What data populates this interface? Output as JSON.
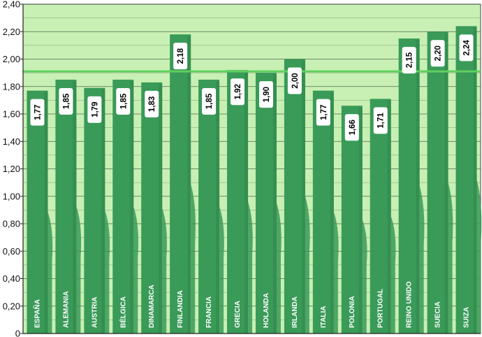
{
  "chart_data": {
    "type": "bar",
    "title": "",
    "xlabel": "",
    "ylabel": "",
    "categories": [
      "ESPAÑA",
      "ALEMANIA",
      "AUSTRIA",
      "BÉLGICA",
      "DINAMARCA",
      "FINLANDIA",
      "FRANCIA",
      "GRECIA",
      "HOLANDA",
      "IRLANDA",
      "ITALIA",
      "POLONIA",
      "PORTUGAL",
      "REINO UNIDO",
      "SUECIA",
      "SUIZA"
    ],
    "values": [
      1.77,
      1.85,
      1.79,
      1.85,
      1.83,
      2.18,
      1.85,
      1.92,
      1.9,
      2.0,
      1.77,
      1.66,
      1.71,
      2.15,
      2.2,
      2.24
    ],
    "value_labels": [
      "1,77",
      "1,85",
      "1,79",
      "1,85",
      "1,83",
      "2,18",
      "1,85",
      "1,92",
      "1,90",
      "2,00",
      "1,77",
      "1,66",
      "1,71",
      "2,15",
      "2,20",
      "2,24"
    ],
    "ylim": [
      0,
      2.4
    ],
    "yticks": [
      0,
      0.2,
      0.4,
      0.6,
      0.8,
      1.0,
      1.2,
      1.4,
      1.6,
      1.8,
      2.0,
      2.2,
      2.4
    ],
    "ytick_labels": [
      "0",
      "0,20",
      "0,40",
      "0,60",
      "0,80",
      "1,00",
      "1,20",
      "1,40",
      "1,60",
      "1,80",
      "2,00",
      "2,20",
      "2,40"
    ],
    "reference_line": 1.91,
    "grid": true,
    "legend": "none",
    "colors": {
      "plot_background": "#c8f0b4",
      "bar": "#3a9a58",
      "bar_dark": "#2f874a",
      "reference_line": "#5fd05f",
      "gridline": "#2e3a2e",
      "label_box": "#ffffff"
    }
  }
}
